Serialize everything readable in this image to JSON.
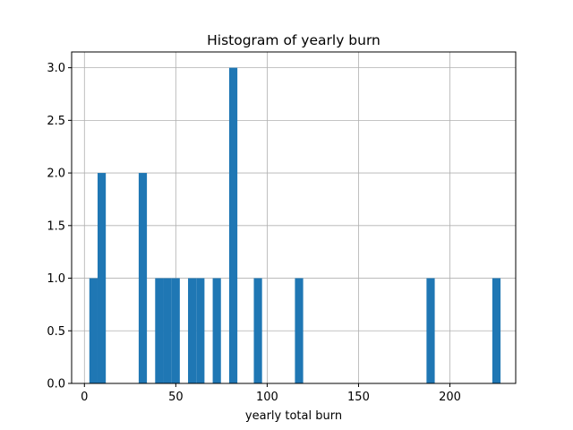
{
  "chart_data": {
    "type": "bar",
    "title": "Histogram of yearly burn",
    "xlabel": "yearly total burn",
    "ylabel": "",
    "xlim": [
      -7,
      236
    ],
    "ylim": [
      0,
      3.15
    ],
    "xticks": [
      0,
      50,
      100,
      150,
      200
    ],
    "yticks": [
      0.0,
      0.5,
      1.0,
      1.5,
      2.0,
      2.5,
      3.0
    ],
    "xtick_labels": [
      "0",
      "50",
      "100",
      "150",
      "200"
    ],
    "ytick_labels": [
      "0.0",
      "0.5",
      "1.0",
      "1.5",
      "2.0",
      "2.5",
      "3.0"
    ],
    "grid": true,
    "bar_color": "#1f77b4",
    "bins": [
      {
        "x0": 2.7,
        "x1": 7.2,
        "count": 1
      },
      {
        "x0": 7.2,
        "x1": 11.7,
        "count": 2
      },
      {
        "x0": 29.7,
        "x1": 34.2,
        "count": 2
      },
      {
        "x0": 38.7,
        "x1": 43.2,
        "count": 1
      },
      {
        "x0": 43.2,
        "x1": 47.7,
        "count": 1
      },
      {
        "x0": 47.7,
        "x1": 52.2,
        "count": 1
      },
      {
        "x0": 56.7,
        "x1": 61.2,
        "count": 1
      },
      {
        "x0": 61.2,
        "x1": 65.7,
        "count": 1
      },
      {
        "x0": 70.2,
        "x1": 74.7,
        "count": 1
      },
      {
        "x0": 79.2,
        "x1": 83.7,
        "count": 3
      },
      {
        "x0": 92.7,
        "x1": 97.2,
        "count": 1
      },
      {
        "x0": 115.2,
        "x1": 119.7,
        "count": 1
      },
      {
        "x0": 187.2,
        "x1": 191.7,
        "count": 1
      },
      {
        "x0": 223.2,
        "x1": 227.7,
        "count": 1
      }
    ]
  }
}
